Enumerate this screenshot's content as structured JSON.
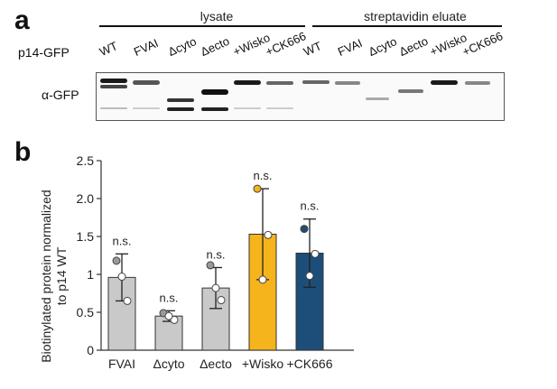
{
  "figure": {
    "panel_a_label": "a",
    "panel_b_label": "b",
    "group_lysate": "lysate",
    "group_eluate": "streptavidin eluate",
    "row_label": "p14-GFP",
    "blot_label": "α-GFP",
    "lanes_lysate": [
      "WT",
      "FVAI",
      "Δcyto",
      "Δecto",
      "+Wisko",
      "+CK666"
    ],
    "lanes_eluate": [
      "WT",
      "FVAI",
      "Δcyto",
      "Δecto",
      "+Wisko",
      "+CK666"
    ]
  },
  "colors": {
    "gray_bar": "#c9c9c9",
    "wisko_bar": "#f5b41c",
    "ck666_bar": "#1d4e79",
    "outline": "#333333"
  },
  "chart_data": {
    "type": "bar",
    "categories": [
      "FVAI",
      "Δcyto",
      "Δecto",
      "+Wisko",
      "+CK666"
    ],
    "values": [
      0.96,
      0.45,
      0.82,
      1.53,
      1.28
    ],
    "errors": [
      0.31,
      0.07,
      0.27,
      0.6,
      0.45
    ],
    "points": [
      [
        1.18,
        0.65,
        0.97
      ],
      [
        0.49,
        0.4,
        0.45
      ],
      [
        1.12,
        0.66,
        0.82
      ],
      [
        2.13,
        1.52,
        0.93
      ],
      [
        1.6,
        1.27,
        0.98
      ]
    ],
    "annotations": [
      "n.s.",
      "n.s.",
      "n.s.",
      "n.s.",
      "n.s."
    ],
    "bar_colors": [
      "#c9c9c9",
      "#c9c9c9",
      "#c9c9c9",
      "#f5b41c",
      "#1d4e79"
    ],
    "ylabel_line1": "Biotinylated protein normalized",
    "ylabel_line2": "to p14 WT",
    "ylim": [
      0,
      2.5
    ],
    "yticks": [
      "0",
      "0.5",
      "1",
      "1.5",
      "2.0",
      "2.5"
    ],
    "ytick_values": [
      0,
      0.5,
      1,
      1.5,
      2.0,
      2.5
    ]
  }
}
